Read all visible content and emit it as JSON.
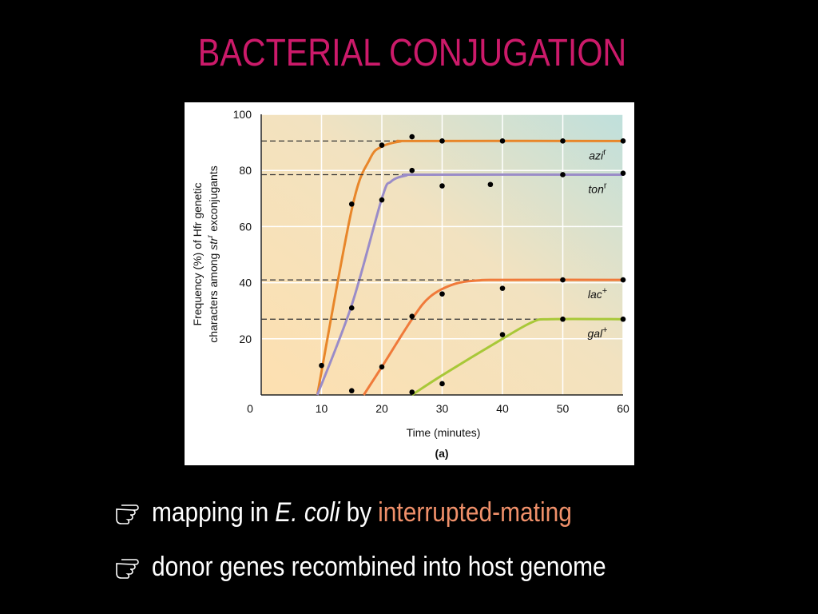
{
  "slide_title": "BACTERIAL CONJUGATION",
  "chart_data": {
    "type": "scatter-curve",
    "xlabel": "Time (minutes)",
    "caption": "(a)",
    "ylabel": {
      "line1": "Frequency (%) of Hfr genetic",
      "line2_start": "characters among",
      "line2_italic": "str",
      "line2_sup": "r",
      "line2_end": "exconjugants"
    },
    "xlim": [
      0,
      60
    ],
    "xticks": [
      0,
      10,
      20,
      30,
      40,
      50,
      60
    ],
    "ylim": [
      0,
      100
    ],
    "yticks": [
      20,
      40,
      60,
      80,
      100
    ],
    "grid": true,
    "series": [
      {
        "name": "azi",
        "sup": "r",
        "color": "#e8862a",
        "plateau": 90.5,
        "x": [
          10,
          15,
          20,
          25,
          30,
          40,
          50,
          60
        ],
        "values": [
          10.5,
          68,
          89,
          92,
          90.5,
          90.5,
          90.5,
          90.5
        ],
        "curve_x": [
          9.3,
          15,
          18,
          20,
          23,
          26,
          60
        ],
        "curve_values": [
          0,
          66,
          84,
          88.5,
          90.3,
          90.5,
          90.5
        ]
      },
      {
        "name": "ton",
        "sup": "r",
        "color": "#9a8cc8",
        "plateau": 78.5,
        "x": [
          15,
          20,
          25,
          30,
          38,
          50,
          60
        ],
        "values": [
          31,
          69.5,
          80,
          74.5,
          75,
          78.5,
          79
        ],
        "curve_x": [
          9.3,
          15,
          20,
          21.5,
          24,
          27,
          60
        ],
        "curve_values": [
          0,
          32,
          70,
          76,
          78.2,
          78.5,
          78.5
        ]
      },
      {
        "name": "lac",
        "sup": "+",
        "color": "#f07a3a",
        "plateau": 41,
        "x": [
          15,
          20,
          25,
          30,
          40,
          50,
          60
        ],
        "values": [
          1.5,
          10,
          28,
          36,
          38,
          41,
          41
        ],
        "curve_x": [
          17,
          20,
          25,
          28,
          32,
          36,
          40,
          60
        ],
        "curve_values": [
          0,
          10,
          27,
          35,
          39.5,
          40.8,
          41,
          41
        ]
      },
      {
        "name": "gal",
        "sup": "+",
        "color": "#a8c838",
        "plateau": 27,
        "x": [
          25,
          30,
          40,
          50,
          60
        ],
        "values": [
          1,
          4,
          21.5,
          27,
          27
        ],
        "curve_x": [
          25,
          30,
          40,
          45,
          48,
          60
        ],
        "curve_values": [
          0,
          7,
          20,
          26,
          27,
          27
        ]
      }
    ]
  },
  "bullets": [
    {
      "a": "mapping in",
      "b": "E. coli",
      "c": "by",
      "d": "interrupted-mating"
    },
    {
      "a": "donor genes recombined into host genome"
    }
  ]
}
